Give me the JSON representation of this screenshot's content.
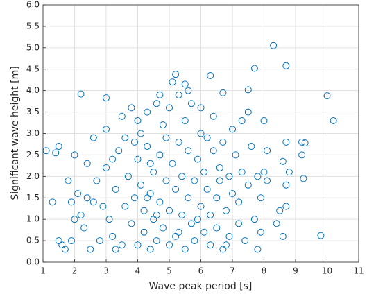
{
  "chart_data": {
    "type": "scatter",
    "xlabel": "Wave peak period [s]",
    "ylabel": "Significant wave height [m]",
    "color": "#0072bd",
    "grid": true,
    "xlim": [
      1,
      11
    ],
    "ylim": [
      0,
      6
    ],
    "xticks": [
      1,
      2,
      3,
      4,
      5,
      6,
      7,
      8,
      9,
      10,
      11
    ],
    "yticks": [
      {
        "value": 0,
        "label": "0.0"
      },
      0.5,
      {
        "value": 1,
        "label": "1.0"
      },
      1.5,
      {
        "value": 2,
        "label": "2.0"
      },
      2.5,
      {
        "value": 3,
        "label": "3.0"
      },
      3.5,
      {
        "value": 4,
        "label": "4.0"
      },
      4.5,
      {
        "value": 5,
        "label": "5.0"
      },
      5.5,
      {
        "value": 6,
        "label": "6.0"
      }
    ],
    "x": [
      8.3,
      8.7,
      7.7,
      10.0,
      10.2,
      9.8,
      1.1,
      1.3,
      1.5,
      1.4,
      2.2,
      3.0,
      5.2,
      6.3,
      5.5,
      6.7,
      7.5,
      9.2,
      9.3,
      9.2,
      9.25,
      8.7,
      8.6,
      8.8,
      8.7,
      8.5,
      8.7,
      8.6,
      8.0,
      8.4,
      1.6,
      1.7,
      1.9,
      1.5,
      2.0,
      2.1,
      2.2,
      2.3,
      2.4,
      2.5,
      2.6,
      2.7,
      2.8,
      2.9,
      3.0,
      3.0,
      3.1,
      3.2,
      3.3,
      3.4,
      3.5,
      3.5,
      3.6,
      3.7,
      3.8,
      3.8,
      3.9,
      4.0,
      4.0,
      4.1,
      4.1,
      4.2,
      4.2,
      4.3,
      4.3,
      4.4,
      4.4,
      4.5,
      4.5,
      4.6,
      4.6,
      4.7,
      4.7,
      4.8,
      4.8,
      4.9,
      4.9,
      5.0,
      5.0,
      5.0,
      5.1,
      5.1,
      5.2,
      5.2,
      5.3,
      5.3,
      5.4,
      5.4,
      5.5,
      5.5,
      5.6,
      5.6,
      5.7,
      5.7,
      5.8,
      5.8,
      5.9,
      6.0,
      6.0,
      6.1,
      6.1,
      6.2,
      6.2,
      6.3,
      6.3,
      6.4,
      6.4,
      6.5,
      6.5,
      6.6,
      6.6,
      6.7,
      6.7,
      6.8,
      6.9,
      6.9,
      7.0,
      7.0,
      7.1,
      7.2,
      7.2,
      7.3,
      7.3,
      7.4,
      7.5,
      7.5,
      7.6,
      7.7,
      7.8,
      7.9,
      7.9,
      8.0,
      8.1,
      8.1,
      1.8,
      1.9,
      2.0,
      2.6,
      3.3,
      3.9,
      4.4,
      4.6,
      5.3,
      5.9,
      6.8,
      7.8,
      3.6,
      4.0,
      4.7,
      5.6,
      6.0,
      2.4,
      3.2,
      4.3
    ],
    "values": [
      5.05,
      4.58,
      4.52,
      3.88,
      3.3,
      0.62,
      2.6,
      1.4,
      2.7,
      2.55,
      3.92,
      3.83,
      4.38,
      4.35,
      4.15,
      3.95,
      4.02,
      2.8,
      2.78,
      2.5,
      1.95,
      2.8,
      2.35,
      2.1,
      1.8,
      1.2,
      1.3,
      0.6,
      3.3,
      0.9,
      0.4,
      0.3,
      0.5,
      0.5,
      2.5,
      1.6,
      1.1,
      0.8,
      2.3,
      0.3,
      2.9,
      1.9,
      0.5,
      1.3,
      3.1,
      2.2,
      1.0,
      0.6,
      1.7,
      2.6,
      3.4,
      0.4,
      1.3,
      2.0,
      3.6,
      0.9,
      1.5,
      2.4,
      0.4,
      3.0,
      1.8,
      1.2,
      0.7,
      2.7,
      3.5,
      1.6,
      0.3,
      2.1,
      1.0,
      3.7,
      0.5,
      2.5,
      1.4,
      3.2,
      0.8,
      1.9,
      2.9,
      0.4,
      1.2,
      3.6,
      2.3,
      4.2,
      1.7,
      0.6,
      2.8,
      3.9,
      1.1,
      2.0,
      0.3,
      3.3,
      1.5,
      2.6,
      0.9,
      3.7,
      1.9,
      0.5,
      2.4,
      1.3,
      3.0,
      0.7,
      2.1,
      1.7,
      2.9,
      0.4,
      1.1,
      2.6,
      3.4,
      1.5,
      0.8,
      2.2,
      1.9,
      0.3,
      2.8,
      1.2,
      2.0,
      0.6,
      3.1,
      1.6,
      2.5,
      0.9,
      1.4,
      3.3,
      2.1,
      0.5,
      3.5,
      1.8,
      2.7,
      1.0,
      2.0,
      1.5,
      0.7,
      2.1,
      1.9,
      2.6,
      1.9,
      1.4,
      1.0,
      1.4,
      0.3,
      2.8,
      2.3,
      1.1,
      0.7,
      1.0,
      0.4,
      0.3,
      2.9,
      3.3,
      3.9,
      4.0,
      3.6,
      1.5,
      2.4,
      1.5
    ]
  }
}
